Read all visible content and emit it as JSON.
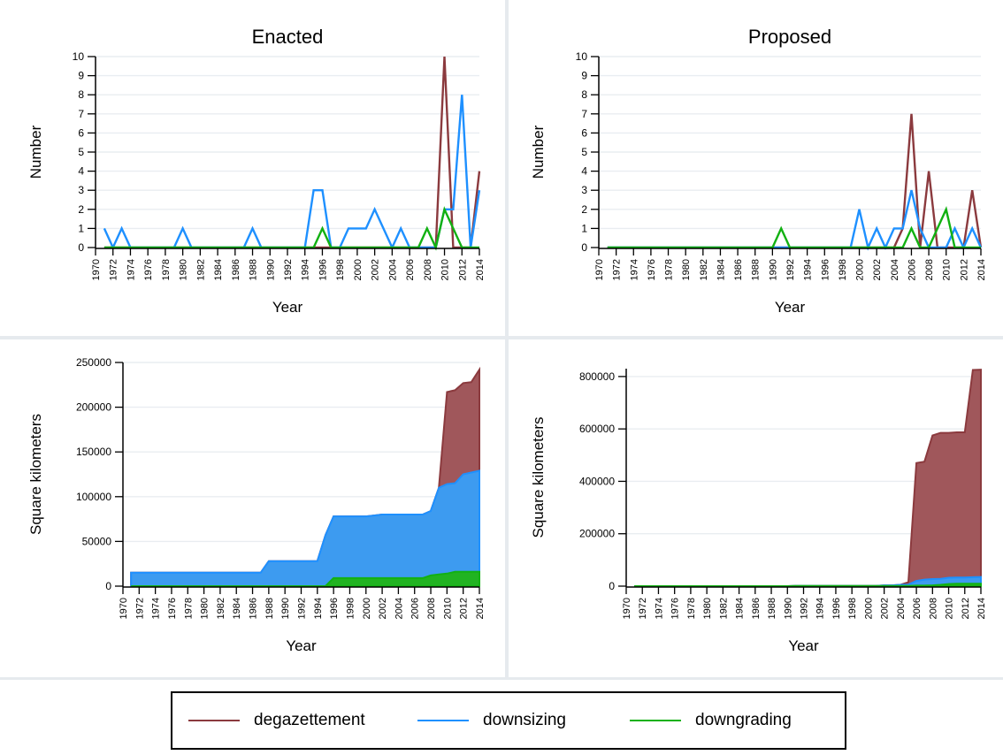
{
  "colors": {
    "degazettement": "#8b3a3e",
    "degazettement_fill": "#a0575b",
    "downsizing": "#1e90ff",
    "downsizing_fill": "#3d9bf0",
    "downgrading": "#12b112",
    "downgrading_fill": "#21b321",
    "grid": "#e9edf1",
    "divider": "#e6eaee"
  },
  "legend": {
    "degazettement": "degazettement",
    "downsizing": "downsizing",
    "downgrading": "downgrading"
  },
  "chart_data": [
    {
      "type": "line",
      "title": "Enacted",
      "xlabel": "Year",
      "ylabel": "Number",
      "xlim": [
        1970,
        2014
      ],
      "ylim": [
        0,
        10
      ],
      "yticks": [
        0,
        1,
        2,
        3,
        4,
        5,
        6,
        7,
        8,
        9,
        10
      ],
      "xticks": [
        1970,
        1972,
        1974,
        1976,
        1978,
        1980,
        1982,
        1984,
        1986,
        1988,
        1990,
        1992,
        1994,
        1996,
        1998,
        2000,
        2002,
        2004,
        2006,
        2008,
        2010,
        2012,
        2014
      ],
      "grid": true,
      "legend": "bottom",
      "x": [
        1971,
        1972,
        1973,
        1974,
        1975,
        1976,
        1977,
        1978,
        1979,
        1980,
        1981,
        1982,
        1983,
        1984,
        1985,
        1986,
        1987,
        1988,
        1989,
        1990,
        1991,
        1992,
        1993,
        1994,
        1995,
        1996,
        1997,
        1998,
        1999,
        2000,
        2001,
        2002,
        2003,
        2004,
        2005,
        2006,
        2007,
        2008,
        2009,
        2010,
        2011,
        2012,
        2013,
        2014
      ],
      "series": [
        {
          "name": "degazettement",
          "values": [
            0,
            0,
            0,
            0,
            0,
            0,
            0,
            0,
            0,
            0,
            0,
            0,
            0,
            0,
            0,
            0,
            0,
            0,
            0,
            0,
            0,
            0,
            0,
            0,
            0,
            0,
            0,
            0,
            0,
            0,
            0,
            0,
            0,
            0,
            0,
            0,
            0,
            0,
            0,
            10,
            0,
            0,
            0,
            4
          ]
        },
        {
          "name": "downsizing",
          "values": [
            1,
            0,
            1,
            0,
            0,
            0,
            0,
            0,
            0,
            1,
            0,
            0,
            0,
            0,
            0,
            0,
            0,
            1,
            0,
            0,
            0,
            0,
            0,
            0,
            3,
            3,
            0,
            0,
            1,
            1,
            1,
            2,
            1,
            0,
            1,
            0,
            0,
            0,
            0,
            2,
            2,
            8,
            0,
            3
          ]
        },
        {
          "name": "downgrading",
          "values": [
            0,
            0,
            0,
            0,
            0,
            0,
            0,
            0,
            0,
            0,
            0,
            0,
            0,
            0,
            0,
            0,
            0,
            0,
            0,
            0,
            0,
            0,
            0,
            0,
            0,
            1,
            0,
            0,
            0,
            0,
            0,
            0,
            0,
            0,
            0,
            0,
            0,
            1,
            0,
            2,
            1,
            0,
            0,
            0
          ]
        }
      ]
    },
    {
      "type": "line",
      "title": "Proposed",
      "xlabel": "Year",
      "ylabel": "Number",
      "xlim": [
        1970,
        2014
      ],
      "ylim": [
        0,
        10
      ],
      "yticks": [
        0,
        1,
        2,
        3,
        4,
        5,
        6,
        7,
        8,
        9,
        10
      ],
      "xticks": [
        1970,
        1972,
        1974,
        1976,
        1978,
        1980,
        1982,
        1984,
        1986,
        1988,
        1990,
        1992,
        1994,
        1996,
        1998,
        2000,
        2002,
        2004,
        2006,
        2008,
        2010,
        2012,
        2014
      ],
      "grid": true,
      "legend": "bottom",
      "x": [
        1971,
        1972,
        1973,
        1974,
        1975,
        1976,
        1977,
        1978,
        1979,
        1980,
        1981,
        1982,
        1983,
        1984,
        1985,
        1986,
        1987,
        1988,
        1989,
        1990,
        1991,
        1992,
        1993,
        1994,
        1995,
        1996,
        1997,
        1998,
        1999,
        2000,
        2001,
        2002,
        2003,
        2004,
        2005,
        2006,
        2007,
        2008,
        2009,
        2010,
        2011,
        2012,
        2013,
        2014
      ],
      "series": [
        {
          "name": "degazettement",
          "values": [
            0,
            0,
            0,
            0,
            0,
            0,
            0,
            0,
            0,
            0,
            0,
            0,
            0,
            0,
            0,
            0,
            0,
            0,
            0,
            0,
            0,
            0,
            0,
            0,
            0,
            0,
            0,
            0,
            0,
            0,
            0,
            0,
            0,
            0,
            1,
            7,
            0,
            4,
            0,
            0,
            0,
            0,
            3,
            0
          ]
        },
        {
          "name": "downsizing",
          "values": [
            0,
            0,
            0,
            0,
            0,
            0,
            0,
            0,
            0,
            0,
            0,
            0,
            0,
            0,
            0,
            0,
            0,
            0,
            0,
            0,
            0,
            0,
            0,
            0,
            0,
            0,
            0,
            0,
            0,
            2,
            0,
            1,
            0,
            1,
            1,
            3,
            1,
            0,
            0,
            0,
            1,
            0,
            1,
            0
          ]
        },
        {
          "name": "downgrading",
          "values": [
            0,
            0,
            0,
            0,
            0,
            0,
            0,
            0,
            0,
            0,
            0,
            0,
            0,
            0,
            0,
            0,
            0,
            0,
            0,
            0,
            1,
            0,
            0,
            0,
            0,
            0,
            0,
            0,
            0,
            0,
            0,
            0,
            0,
            0,
            0,
            1,
            0,
            0,
            1,
            2,
            0,
            0,
            0,
            0
          ]
        }
      ]
    },
    {
      "type": "area",
      "stacked": true,
      "xlabel": "Year",
      "ylabel": "Square kilometers",
      "xlim": [
        1970,
        2014
      ],
      "ylim": [
        0,
        250000
      ],
      "yticks": [
        0,
        50000,
        100000,
        150000,
        200000,
        250000
      ],
      "xticks": [
        1970,
        1972,
        1974,
        1976,
        1978,
        1980,
        1982,
        1984,
        1986,
        1988,
        1990,
        1992,
        1994,
        1996,
        1998,
        2000,
        2002,
        2004,
        2006,
        2008,
        2010,
        2012,
        2014
      ],
      "grid": true,
      "legend": "bottom",
      "x": [
        1971,
        1972,
        1973,
        1974,
        1975,
        1976,
        1977,
        1978,
        1979,
        1980,
        1981,
        1982,
        1983,
        1984,
        1985,
        1986,
        1987,
        1988,
        1989,
        1990,
        1991,
        1992,
        1993,
        1994,
        1995,
        1996,
        1997,
        1998,
        1999,
        2000,
        2001,
        2002,
        2003,
        2004,
        2005,
        2006,
        2007,
        2008,
        2009,
        2010,
        2011,
        2012,
        2013,
        2014
      ],
      "series": [
        {
          "name": "downgrading",
          "values": [
            0,
            0,
            0,
            0,
            0,
            0,
            0,
            0,
            0,
            0,
            0,
            0,
            0,
            0,
            0,
            0,
            0,
            0,
            0,
            0,
            0,
            0,
            0,
            0,
            0,
            9000,
            9000,
            9000,
            9000,
            9000,
            9000,
            9000,
            9000,
            9000,
            9000,
            9000,
            9000,
            12000,
            13000,
            14000,
            16000,
            16000,
            16000,
            16000
          ]
        },
        {
          "name": "downsizing",
          "values": [
            15000,
            15000,
            15000,
            15000,
            15000,
            15000,
            15000,
            15000,
            15000,
            15000,
            15000,
            15000,
            15000,
            15000,
            15000,
            15000,
            15000,
            28000,
            28000,
            28000,
            28000,
            28000,
            28000,
            28000,
            57000,
            78000,
            78000,
            78000,
            78000,
            78000,
            79000,
            80000,
            80000,
            80000,
            80000,
            80000,
            80000,
            84000,
            110000,
            114000,
            115000,
            125000,
            127000,
            129000
          ]
        },
        {
          "name": "degazettement",
          "values": [
            15000,
            15000,
            15000,
            15000,
            15000,
            15000,
            15000,
            15000,
            15000,
            15000,
            15000,
            15000,
            15000,
            15000,
            15000,
            15000,
            15000,
            28000,
            28000,
            28000,
            28000,
            28000,
            28000,
            28000,
            57000,
            78000,
            78000,
            78000,
            78000,
            78000,
            79000,
            80000,
            80000,
            80000,
            80000,
            80000,
            80000,
            84000,
            110000,
            217000,
            219000,
            227000,
            228000,
            242000
          ]
        }
      ]
    },
    {
      "type": "area",
      "stacked": true,
      "xlabel": "Year",
      "ylabel": "Square kilometers",
      "xlim": [
        1970,
        2014
      ],
      "ylim": [
        0,
        830000
      ],
      "yticks": [
        0,
        200000,
        400000,
        600000,
        800000
      ],
      "xticks": [
        1970,
        1972,
        1974,
        1976,
        1978,
        1980,
        1982,
        1984,
        1986,
        1988,
        1990,
        1992,
        1994,
        1996,
        1998,
        2000,
        2002,
        2004,
        2006,
        2008,
        2010,
        2012,
        2014
      ],
      "grid": true,
      "legend": "bottom",
      "x": [
        1971,
        1972,
        1973,
        1974,
        1975,
        1976,
        1977,
        1978,
        1979,
        1980,
        1981,
        1982,
        1983,
        1984,
        1985,
        1986,
        1987,
        1988,
        1989,
        1990,
        1991,
        1992,
        1993,
        1994,
        1995,
        1996,
        1997,
        1998,
        1999,
        2000,
        2001,
        2002,
        2003,
        2004,
        2005,
        2006,
        2007,
        2008,
        2009,
        2010,
        2011,
        2012,
        2013,
        2014
      ],
      "series": [
        {
          "name": "downgrading",
          "values": [
            0,
            0,
            0,
            0,
            0,
            0,
            0,
            0,
            0,
            0,
            0,
            0,
            0,
            0,
            0,
            0,
            0,
            0,
            0,
            0,
            1000,
            1000,
            1000,
            1000,
            1000,
            1000,
            1000,
            1000,
            1000,
            1000,
            1000,
            1000,
            1000,
            1000,
            1000,
            2000,
            2000,
            3000,
            5000,
            8000,
            9000,
            9000,
            9000,
            9000
          ]
        },
        {
          "name": "downsizing",
          "values": [
            0,
            0,
            0,
            0,
            0,
            0,
            0,
            0,
            0,
            0,
            0,
            0,
            0,
            0,
            0,
            0,
            0,
            0,
            0,
            0,
            1000,
            1000,
            1000,
            1000,
            1000,
            1000,
            1000,
            1000,
            1000,
            1000,
            1000,
            3000,
            3000,
            5000,
            6000,
            20000,
            25000,
            27000,
            28000,
            32000,
            33000,
            33000,
            34000,
            35000
          ]
        },
        {
          "name": "degazettement",
          "values": [
            0,
            0,
            0,
            0,
            0,
            0,
            0,
            0,
            0,
            0,
            0,
            0,
            0,
            0,
            0,
            0,
            0,
            0,
            0,
            0,
            1000,
            1000,
            1000,
            1000,
            1000,
            1000,
            1000,
            1000,
            1000,
            1000,
            1000,
            3000,
            3000,
            5000,
            15000,
            470000,
            475000,
            575000,
            585000,
            585000,
            587000,
            587000,
            825000,
            826000
          ]
        }
      ]
    }
  ]
}
